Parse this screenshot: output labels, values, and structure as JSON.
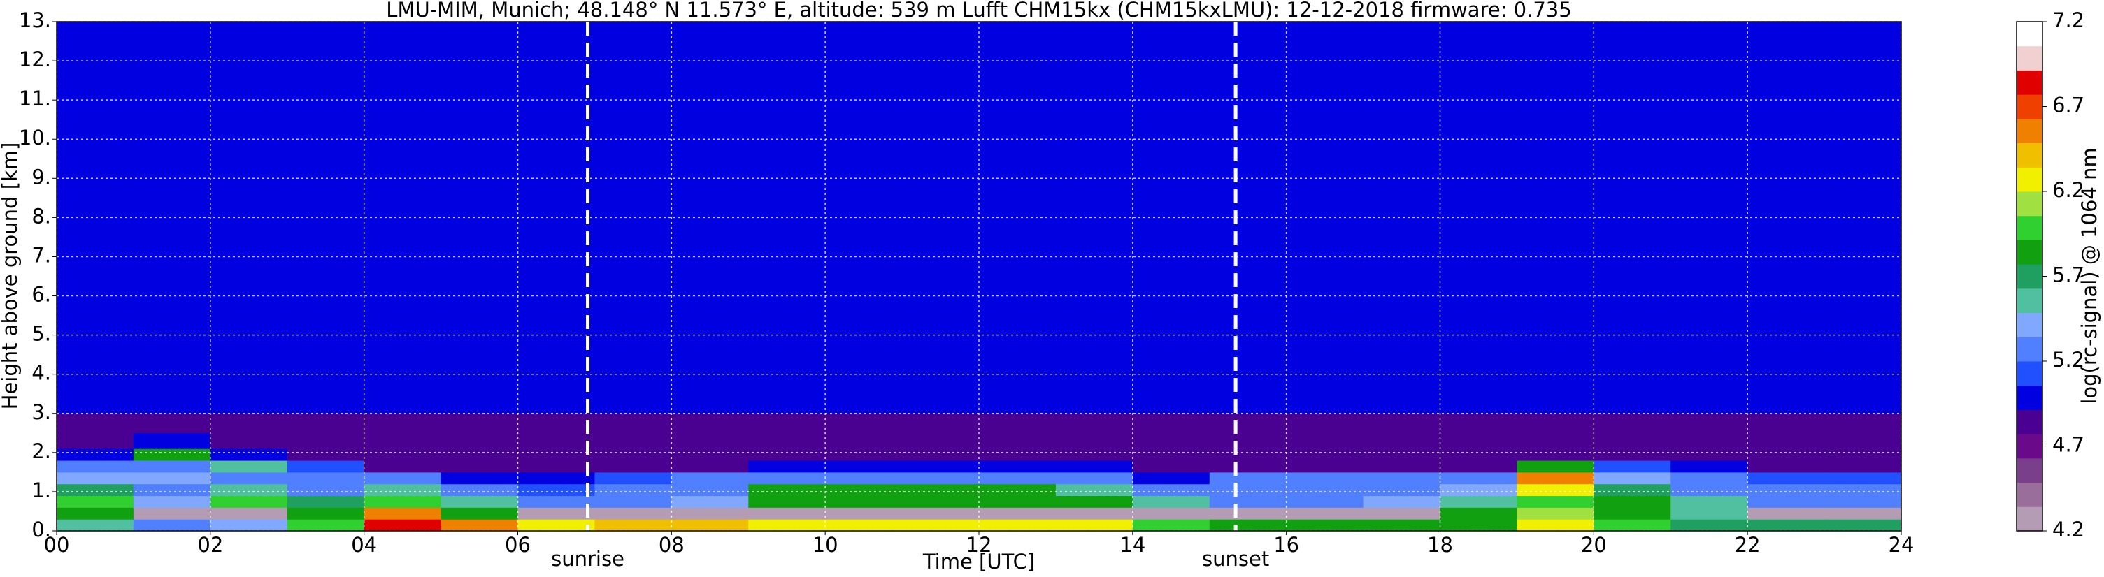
{
  "chart_data": {
    "type": "heatmap",
    "title": "LMU-MIM, Munich; 48.148° N 11.573° E, altitude: 539 m    Lufft CHM15kx (CHM15kxLMU): 12-12-2018    firmware: 0.735",
    "x_label": "Time [UTC]",
    "y_label": "Height above ground [km]",
    "xlim": [
      0,
      24
    ],
    "ylim": [
      0,
      13
    ],
    "xticks": [
      {
        "value": 0,
        "label": "00"
      },
      {
        "value": 2,
        "label": "02"
      },
      {
        "value": 4,
        "label": "04"
      },
      {
        "value": 6,
        "label": "06"
      },
      {
        "value": 8,
        "label": "08"
      },
      {
        "value": 10,
        "label": "10"
      },
      {
        "value": 12,
        "label": "12"
      },
      {
        "value": 14,
        "label": "14"
      },
      {
        "value": 16,
        "label": "16"
      },
      {
        "value": 18,
        "label": "18"
      },
      {
        "value": 20,
        "label": "20"
      },
      {
        "value": 22,
        "label": "22"
      },
      {
        "value": 24,
        "label": "24"
      }
    ],
    "yticks": [
      {
        "value": 0,
        "label": "0."
      },
      {
        "value": 1,
        "label": "1."
      },
      {
        "value": 2,
        "label": "2."
      },
      {
        "value": 3,
        "label": "3."
      },
      {
        "value": 4,
        "label": "4."
      },
      {
        "value": 5,
        "label": "5."
      },
      {
        "value": 6,
        "label": "6."
      },
      {
        "value": 7,
        "label": "7."
      },
      {
        "value": 8,
        "label": "8."
      },
      {
        "value": 9,
        "label": "9."
      },
      {
        "value": 10,
        "label": "10."
      },
      {
        "value": 11,
        "label": "11."
      },
      {
        "value": 12,
        "label": "12."
      },
      {
        "value": 13,
        "label": "13."
      }
    ],
    "grid": true,
    "annotations": [
      {
        "text": "sunrise",
        "x": 6.91
      },
      {
        "text": "sunset",
        "x": 15.34
      }
    ],
    "x_edges": [
      0,
      1,
      2,
      3,
      4,
      5,
      6,
      7,
      8,
      9,
      10,
      11,
      12,
      13,
      14,
      15,
      16,
      17,
      18,
      19,
      20,
      21,
      22,
      23,
      24
    ],
    "y_edges": [
      0,
      0.3,
      0.6,
      0.9,
      1.2,
      1.5,
      1.8,
      2.1,
      2.5,
      3,
      13
    ],
    "z": [
      [
        5.6,
        5.8,
        6.0,
        5.7,
        5.4,
        5.3,
        5.0,
        4.9,
        4.9,
        5.0
      ],
      [
        5.3,
        4.3,
        5.4,
        5.3,
        5.4,
        5.3,
        5.8,
        5.0,
        4.9,
        5.0
      ],
      [
        5.4,
        4.3,
        6.0,
        5.5,
        5.3,
        5.6,
        5.0,
        4.9,
        4.9,
        5.0
      ],
      [
        6.0,
        5.8,
        5.7,
        5.3,
        5.3,
        5.1,
        4.8,
        4.8,
        4.9,
        5.0
      ],
      [
        6.8,
        6.6,
        6.0,
        5.6,
        5.2,
        4.9,
        4.8,
        4.8,
        4.9,
        5.0
      ],
      [
        6.6,
        5.9,
        5.5,
        5.2,
        5.0,
        4.9,
        4.8,
        4.8,
        4.9,
        5.0
      ],
      [
        6.3,
        4.3,
        5.3,
        5.1,
        5.0,
        4.9,
        4.8,
        4.8,
        4.9,
        5.0
      ],
      [
        6.4,
        4.3,
        5.3,
        5.2,
        5.1,
        4.9,
        4.8,
        4.8,
        4.9,
        5.0
      ],
      [
        6.4,
        4.3,
        5.4,
        5.3,
        5.2,
        4.9,
        4.8,
        4.8,
        4.9,
        5.0
      ],
      [
        6.3,
        4.3,
        5.9,
        5.8,
        5.3,
        5.0,
        4.8,
        4.8,
        4.9,
        5.0
      ],
      [
        6.3,
        4.3,
        5.9,
        5.8,
        5.3,
        5.0,
        4.8,
        4.8,
        4.9,
        5.0
      ],
      [
        6.3,
        4.3,
        5.9,
        5.8,
        5.3,
        5.0,
        4.8,
        4.8,
        4.9,
        5.0
      ],
      [
        6.3,
        4.3,
        5.9,
        5.8,
        5.3,
        5.0,
        4.8,
        4.8,
        4.9,
        5.0
      ],
      [
        6.2,
        4.3,
        5.8,
        5.6,
        5.3,
        5.0,
        4.8,
        4.8,
        4.9,
        5.0
      ],
      [
        6.0,
        4.3,
        5.5,
        5.2,
        5.0,
        4.9,
        4.8,
        4.8,
        4.9,
        5.0
      ],
      [
        5.8,
        4.3,
        5.3,
        5.2,
        5.3,
        4.9,
        4.8,
        4.8,
        4.9,
        5.0
      ],
      [
        5.9,
        4.3,
        5.3,
        5.3,
        5.3,
        4.9,
        4.8,
        4.8,
        4.9,
        5.0
      ],
      [
        5.9,
        4.3,
        5.4,
        5.3,
        5.2,
        4.9,
        4.8,
        4.8,
        4.9,
        5.0
      ],
      [
        5.8,
        5.8,
        5.6,
        5.4,
        5.2,
        4.9,
        4.8,
        4.8,
        4.9,
        5.0
      ],
      [
        6.2,
        6.1,
        6.0,
        6.2,
        6.5,
        5.9,
        4.9,
        4.8,
        4.9,
        5.0
      ],
      [
        6.0,
        5.8,
        5.8,
        5.7,
        5.4,
        5.1,
        4.8,
        4.8,
        4.9,
        5.0
      ],
      [
        5.7,
        5.5,
        5.5,
        5.3,
        5.2,
        5.0,
        4.8,
        4.8,
        4.9,
        5.0
      ],
      [
        5.7,
        4.3,
        5.3,
        5.3,
        5.1,
        4.9,
        4.8,
        4.8,
        4.9,
        5.0
      ],
      [
        5.7,
        4.3,
        5.3,
        5.2,
        5.1,
        4.9,
        4.8,
        4.8,
        4.9,
        5.0
      ]
    ],
    "colorbar": {
      "label": "log(rc-signal) @ 1064 nm",
      "clim": [
        4.2,
        7.2
      ],
      "ticks": [
        4.2,
        4.7,
        5.2,
        5.7,
        6.2,
        6.7,
        7.2
      ],
      "colors": [
        "#b49cb4",
        "#9a6e9a",
        "#7a3f8a",
        "#6a0a8a",
        "#4a0090",
        "#0000e0",
        "#2050ff",
        "#5080ff",
        "#80a8ff",
        "#50c0a0",
        "#20a060",
        "#10a010",
        "#30d030",
        "#a0e040",
        "#f0f000",
        "#f0c000",
        "#f08000",
        "#f04000",
        "#e00000",
        "#f0d0d0",
        "#ffffff"
      ]
    }
  }
}
